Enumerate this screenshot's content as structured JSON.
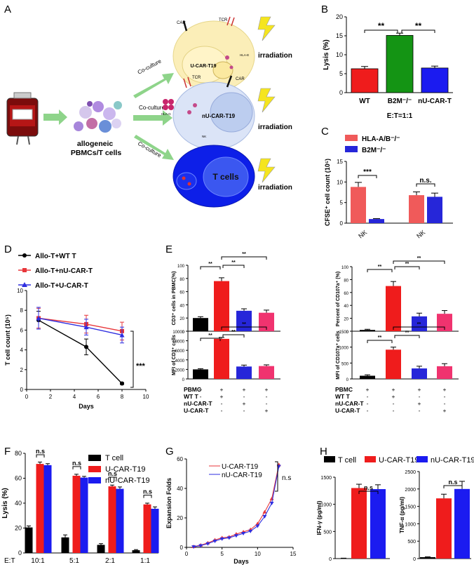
{
  "panel_letters": {
    "a": "A",
    "b": "B",
    "c": "C",
    "d": "D",
    "e": "E",
    "f": "F",
    "g": "G",
    "h": "H"
  },
  "schematic": {
    "cell_label": "allogeneic\nPBMCs/T cells",
    "coculture": "Co-culture",
    "irradiation": "irradiation",
    "u_car": "U-CAR-T19",
    "nu_car": "nU-CAR-T19",
    "t_cells": "T cells",
    "car": "CAR",
    "tcr": "TCR",
    "hla_e": "HLA-E",
    "hla_g": "HLA-G",
    "b2m": "B2M",
    "nk": "NK"
  },
  "colors": {
    "red": "#ef1c1c",
    "green": "#149414",
    "blue": "#1b1bf0",
    "pink": "#f0336f",
    "black": "#000000",
    "salmon": "#f05a5a",
    "royal": "#2626d9",
    "thin_red": "#e8363a",
    "thin_blue": "#2e2ee0"
  },
  "chart_data": [
    {
      "id": "B",
      "type": "bar",
      "title": "",
      "xlabel": "E:T=1:1",
      "ylabel": "Lysis (%)",
      "categories": [
        "WT",
        "B2M⁻/⁻",
        "nU-CAR-T"
      ],
      "values": [
        6.3,
        15.1,
        6.5
      ],
      "errors": [
        0.6,
        0.6,
        0.5
      ],
      "ylim": [
        0,
        20
      ],
      "yticks": [
        "0",
        "5",
        "10",
        "15",
        "20"
      ],
      "significance": [
        {
          "pair": [
            0,
            1
          ],
          "label": "**"
        },
        {
          "pair": [
            1,
            2
          ],
          "label": "**"
        }
      ]
    },
    {
      "id": "C",
      "type": "bar",
      "xlabel": "",
      "ylabel": "CFSE⁺ cell count (10⁵)",
      "legend": [
        "HLA-A/B⁻/⁻",
        "B2M⁻/⁻"
      ],
      "groups": [
        "NK",
        "NK"
      ],
      "series": [
        {
          "name": "HLA-A/B⁻/⁻",
          "values": [
            8.8,
            6.8
          ],
          "errors": [
            1.1,
            0.8
          ]
        },
        {
          "name": "B2M⁻/⁻",
          "values": [
            1.0,
            6.4
          ],
          "errors": [
            0.1,
            0.9
          ]
        }
      ],
      "ylim": [
        0,
        15
      ],
      "yticks": [
        "0",
        "5",
        "10",
        "15"
      ],
      "significance": [
        {
          "group": 0,
          "label": "***"
        },
        {
          "group": 1,
          "label": "n.s."
        }
      ]
    },
    {
      "id": "D",
      "type": "line",
      "xlabel": "Days",
      "ylabel": "T cell count (10⁵)",
      "xlim": [
        0,
        10
      ],
      "ylim": [
        0,
        10
      ],
      "xticks": [
        "0",
        "2",
        "4",
        "6",
        "8",
        "10"
      ],
      "yticks": [
        "0",
        "2",
        "4",
        "6",
        "8",
        "10"
      ],
      "x": [
        1,
        5,
        8
      ],
      "series": [
        {
          "name": "Allo-T+WT T",
          "values": [
            7.0,
            4.3,
            0.6
          ],
          "errors": [
            0.9,
            0.8,
            0.1
          ]
        },
        {
          "name": "Allo-T+nU-CAR-T",
          "values": [
            7.2,
            6.6,
            5.9
          ],
          "errors": [
            1.0,
            0.9,
            0.9
          ]
        },
        {
          "name": "Allo-T+U-CAR-T",
          "values": [
            7.2,
            6.3,
            5.5
          ],
          "errors": [
            1.1,
            0.8,
            0.8
          ]
        }
      ],
      "significance": "***"
    },
    {
      "id": "E1",
      "type": "bar",
      "ylabel": "CD3⁺ cells in PBMC(%)",
      "ylim": [
        0,
        100
      ],
      "yticks": [
        "0",
        "20",
        "40",
        "60",
        "80",
        "100"
      ],
      "values": [
        20,
        76,
        31,
        28
      ],
      "errors": [
        2,
        5,
        3,
        4
      ],
      "significance": [
        {
          "pair": [
            0,
            1
          ],
          "label": "**"
        },
        {
          "pair": [
            1,
            2
          ],
          "label": "**"
        },
        {
          "pair": [
            1,
            3
          ],
          "label": "**"
        }
      ]
    },
    {
      "id": "E2",
      "type": "bar",
      "ylabel": "Percent of CD107a⁺ (%)",
      "ylim": [
        0,
        100
      ],
      "yticks": [
        "0",
        "20",
        "40",
        "60",
        "80",
        "100"
      ],
      "values": [
        2,
        70,
        23,
        27
      ],
      "errors": [
        1,
        7,
        5,
        5
      ],
      "significance": [
        {
          "pair": [
            0,
            1
          ],
          "label": "**"
        },
        {
          "pair": [
            1,
            2
          ],
          "label": "**"
        },
        {
          "pair": [
            1,
            3
          ],
          "label": "**"
        }
      ]
    },
    {
      "id": "E3",
      "type": "bar",
      "ylabel": "MFI of CD3⁺ cells",
      "ylim": [
        0,
        10000
      ],
      "yticks": [
        "0",
        "2000",
        "4000",
        "6000",
        "8000",
        "10000"
      ],
      "values": [
        2000,
        8400,
        2600,
        2700
      ],
      "errors": [
        150,
        300,
        300,
        250
      ],
      "significance": [
        {
          "pair": [
            0,
            1
          ],
          "label": "**"
        },
        {
          "pair": [
            1,
            2
          ],
          "label": "**"
        },
        {
          "pair": [
            1,
            3
          ],
          "label": "**"
        }
      ]
    },
    {
      "id": "E4",
      "type": "bar",
      "ylabel": "MFI of CD107a⁺ cells",
      "ylim": [
        0,
        1500
      ],
      "yticks": [
        "0",
        "500",
        "1000",
        "1500"
      ],
      "values": [
        100,
        920,
        330,
        400
      ],
      "errors": [
        30,
        80,
        70,
        80
      ],
      "significance": [
        {
          "pair": [
            0,
            1
          ],
          "label": "**"
        },
        {
          "pair": [
            1,
            2
          ],
          "label": "**"
        },
        {
          "pair": [
            1,
            3
          ],
          "label": "**"
        }
      ]
    },
    {
      "id": "E_table",
      "rows": [
        {
          "label": "PBMC",
          "cells": [
            "+",
            "+",
            "+",
            "+"
          ]
        },
        {
          "label": "WT T",
          "cells": [
            "-",
            "+",
            "-",
            "-"
          ]
        },
        {
          "label": "nU-CAR-T",
          "cells": [
            "-",
            "-",
            "+",
            "-"
          ]
        },
        {
          "label": "U-CAR-T",
          "cells": [
            "-",
            "-",
            "-",
            "+"
          ]
        }
      ]
    },
    {
      "id": "F",
      "type": "bar",
      "ylabel": "Lysis (%)",
      "xlabel_prefix": "E:T",
      "categories": [
        "10:1",
        "5:1",
        "2:1",
        "1:1"
      ],
      "series": [
        {
          "name": "T cell",
          "values": [
            20.5,
            12.5,
            6.5,
            2.2
          ],
          "errors": [
            1.2,
            2.0,
            1.0,
            0.5
          ]
        },
        {
          "name": "U-CAR-T19",
          "values": [
            71.5,
            62,
            53.5,
            39
          ],
          "errors": [
            1.5,
            1.2,
            1.0,
            1.0
          ]
        },
        {
          "name": "nU-CAR-T19",
          "values": [
            70.5,
            60.5,
            51.5,
            35.5
          ],
          "errors": [
            1.2,
            1.0,
            1.5,
            1.5
          ]
        }
      ],
      "ylim": [
        0,
        80
      ],
      "yticks": [
        "0",
        "20",
        "40",
        "60",
        "80"
      ],
      "significance": [
        "n.s",
        "n.s",
        "n.s",
        "n.s"
      ]
    },
    {
      "id": "G",
      "type": "line",
      "xlabel": "Days",
      "ylabel": "Expansion Folds",
      "xlim": [
        0,
        15
      ],
      "ylim": [
        0,
        60
      ],
      "xticks": [
        "0",
        "5",
        "10",
        "15"
      ],
      "yticks": [
        "0",
        "20",
        "40",
        "60"
      ],
      "x": [
        1,
        2,
        3,
        4,
        5,
        6,
        7,
        8,
        9,
        10,
        11,
        12,
        13
      ],
      "series": [
        {
          "name": "U-CAR-T19",
          "values": [
            0.5,
            1.5,
            3,
            5,
            6.5,
            7,
            9,
            10.5,
            12,
            16,
            24,
            33,
            56
          ]
        },
        {
          "name": "nU-CAR-T19",
          "values": [
            0.4,
            1.2,
            2.5,
            4.3,
            5.8,
            6.5,
            8,
            9.5,
            11,
            14.5,
            21,
            30,
            55
          ]
        }
      ],
      "significance": "n.s"
    },
    {
      "id": "H1",
      "type": "bar",
      "ylabel": "IFN-γ (pg/ml)",
      "legend": [
        "T cell",
        "U-CAR-T19",
        "nU-CAR-T19"
      ],
      "values": [
        5,
        1300,
        1280
      ],
      "errors": [
        3,
        70,
        80
      ],
      "ylim": [
        0,
        1500
      ],
      "yticks": [
        "0",
        "500",
        "1000",
        "1500"
      ],
      "significance": "n.s"
    },
    {
      "id": "H2",
      "type": "bar",
      "ylabel": "TNF-α (pg/ml)",
      "values": [
        40,
        1730,
        2000
      ],
      "errors": [
        10,
        120,
        220
      ],
      "ylim": [
        0,
        2500
      ],
      "yticks": [
        "0",
        "500",
        "1000",
        "1500",
        "2000",
        "2500"
      ],
      "significance": "n.s"
    }
  ]
}
